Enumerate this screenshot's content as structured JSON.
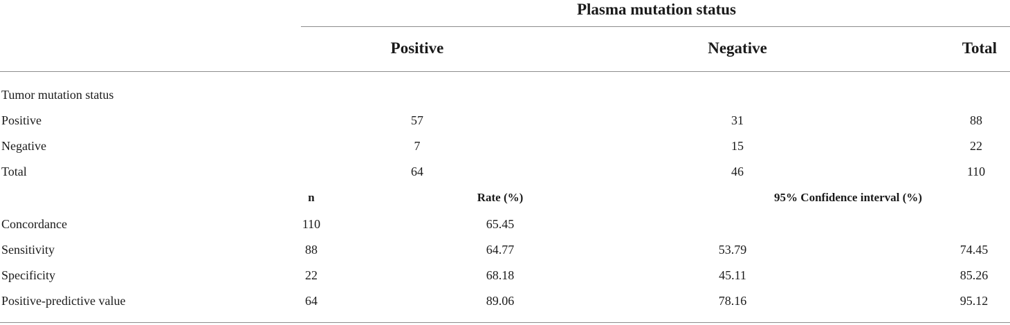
{
  "table": {
    "title": "Plasma mutation status",
    "columns": [
      "Positive",
      "Negative",
      "Total"
    ],
    "section_label": "Tumor mutation status",
    "contingency_rows": [
      {
        "label": "Positive",
        "values": [
          "57",
          "31",
          "88"
        ]
      },
      {
        "label": "Negative",
        "values": [
          "7",
          "15",
          "22"
        ]
      },
      {
        "label": "Total",
        "values": [
          "64",
          "46",
          "110"
        ]
      }
    ],
    "stats_header": [
      "n",
      "Rate (%)",
      "95% Confidence interval (%)"
    ],
    "stats_rows": [
      {
        "label": "Concordance",
        "n": "110",
        "rate": "65.45",
        "ci_low": "",
        "ci_high": ""
      },
      {
        "label": "Sensitivity",
        "n": "88",
        "rate": "64.77",
        "ci_low": "53.79",
        "ci_high": "74.45"
      },
      {
        "label": "Specificity",
        "n": "22",
        "rate": "68.18",
        "ci_low": "45.11",
        "ci_high": "85.26"
      },
      {
        "label": "Positive-predictive value",
        "n": "64",
        "rate": "89.06",
        "ci_low": "78.16",
        "ci_high": "95.12"
      }
    ]
  }
}
